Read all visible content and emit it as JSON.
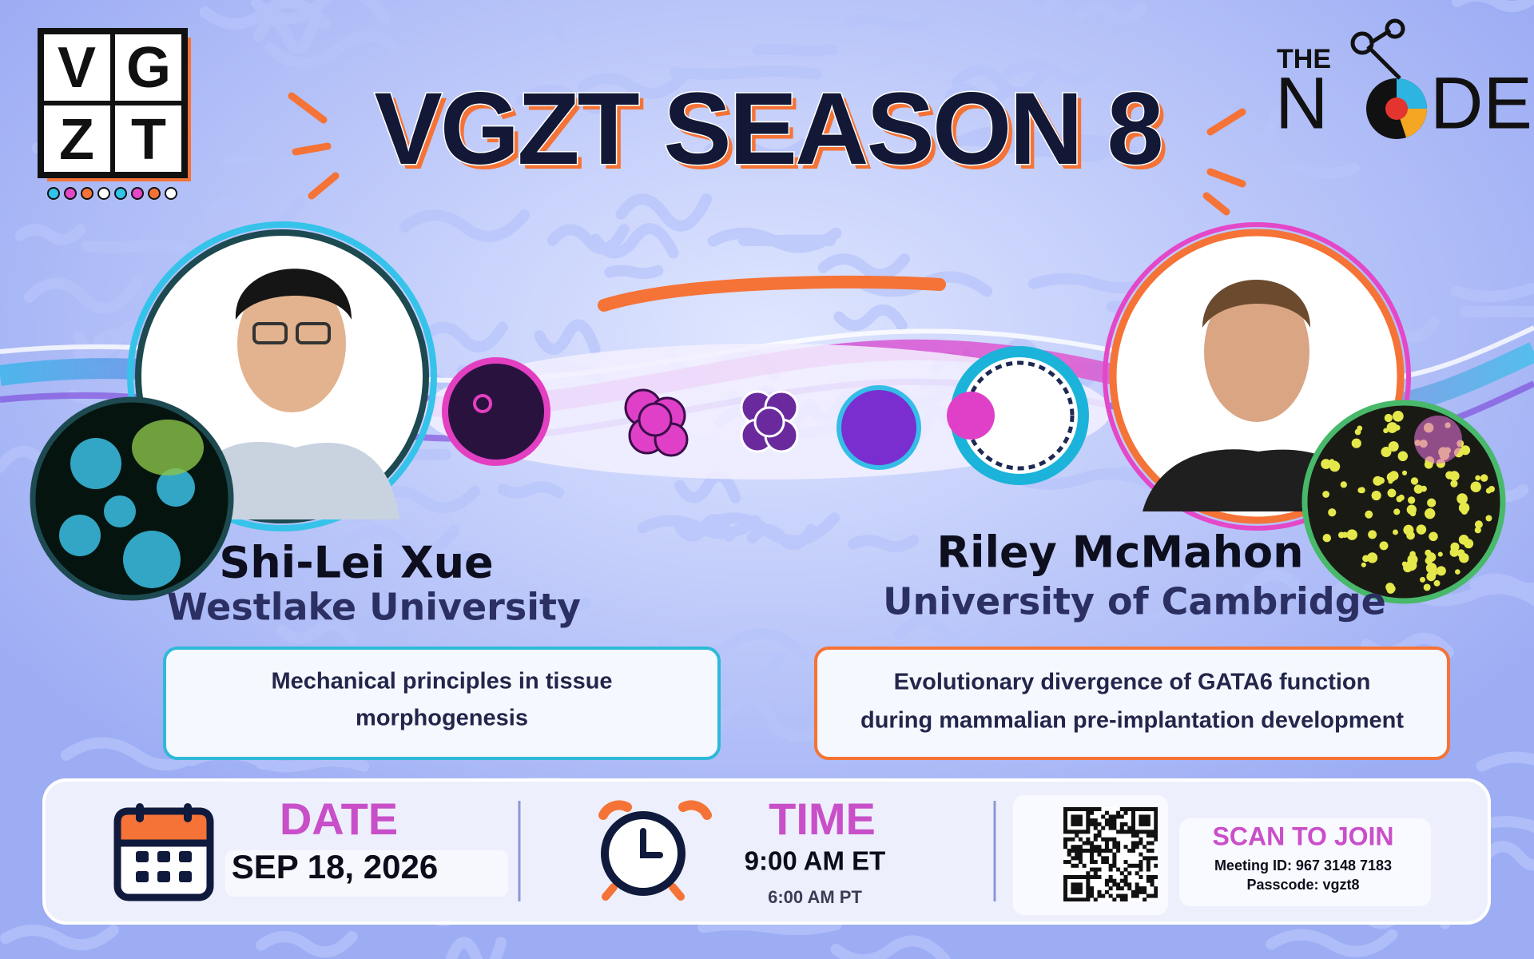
{
  "logo": {
    "letters": [
      "V",
      "G",
      "Z",
      "T"
    ]
  },
  "title": "VGZT SEASON 8",
  "partner": {
    "the": "THE",
    "node_start": "N",
    "node_end": "DE"
  },
  "speakers": [
    {
      "name": "Shi-Lei Xue",
      "affiliation": "Westlake University",
      "talk": [
        "Mechanical principles in tissue",
        "morphogenesis"
      ]
    },
    {
      "name": "Riley McMahon",
      "affiliation": "University of Cambridge",
      "talk": [
        "Evolutionary divergence of GATA6 function",
        "during mammalian pre-implantation development"
      ]
    }
  ],
  "details": {
    "date_label": "DATE",
    "date": "SEP 18, 2026",
    "time_label": "TIME",
    "time": "9:00 AM ET",
    "time_alt": "6:00 AM PT",
    "join_label": "SCAN TO JOIN",
    "meeting_id": "Meeting ID: 967 3148 7183",
    "passcode": "Passcode: vgzt8"
  }
}
